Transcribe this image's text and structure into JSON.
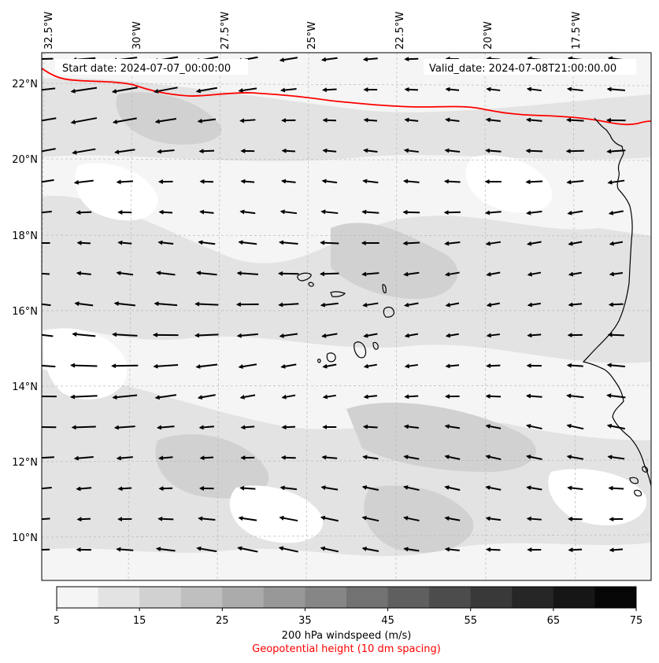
{
  "header": {
    "start_date": "Start date: 2024-07-07_00:00:00",
    "valid_date": "Valid_date: 2024-07-08T21:00:00.00"
  },
  "map": {
    "lon_labels": [
      "32.5°W",
      "30°W",
      "27.5°W",
      "25°W",
      "22.5°W",
      "20°W",
      "17.5°W"
    ],
    "lat_labels": [
      "22°N",
      "20°N",
      "18°N",
      "16°N",
      "14°N",
      "12°N",
      "10°N"
    ],
    "extent": {
      "lon_min": -33.0,
      "lon_max": -15.5,
      "lat_min": 8.9,
      "lat_max": 22.8
    },
    "geopotential_contour_color": "#ff0000",
    "coastline_color": "#000000",
    "wind_vector_color": "#000000"
  },
  "colorbar": {
    "ticks": [
      "5",
      "15",
      "25",
      "35",
      "45",
      "55",
      "65",
      "75"
    ],
    "levels": [
      5,
      10,
      15,
      20,
      25,
      30,
      35,
      40,
      45,
      50,
      55,
      60,
      65,
      70,
      75
    ],
    "colors": [
      "#f5f5f5",
      "#e3e3e3",
      "#d1d1d1",
      "#bfbfbf",
      "#ababab",
      "#989898",
      "#868686",
      "#727272",
      "#5f5f5f",
      "#4c4c4c",
      "#393939",
      "#262626",
      "#161616",
      "#060606"
    ],
    "label": "200 hPa windspeed (m/s)",
    "sublabel": "Geopotential height (10 dm spacing)",
    "sublabel_color": "#ff0000"
  }
}
